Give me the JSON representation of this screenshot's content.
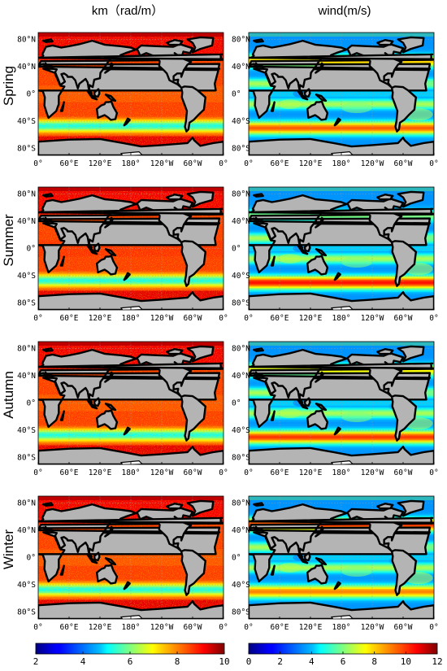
{
  "chart_data": {
    "type": "heatmap",
    "layout": "4 rows x 2 columns of global maps",
    "columns": [
      {
        "title": "km（rad/m）",
        "colorbar": {
          "range": [
            2,
            10
          ],
          "ticks": [
            "2",
            "4",
            "6",
            "8",
            "10"
          ]
        }
      },
      {
        "title": "wind(m/s)",
        "colorbar": {
          "range": [
            0,
            12
          ],
          "ticks": [
            "0",
            "2",
            "4",
            "6",
            "8",
            "10",
            "12"
          ]
        }
      }
    ],
    "rows": [
      "Spring",
      "Summer",
      "Autumn",
      "Winter"
    ],
    "x_ticks": [
      "0°",
      "60°E",
      "120°E",
      "180°",
      "120°W",
      "60°W",
      "0°"
    ],
    "y_ticks": [
      "80°N",
      "40°N",
      "0°",
      "40°S",
      "80°S"
    ],
    "x_range_deg": [
      0,
      360
    ],
    "y_range_deg": [
      -90,
      90
    ],
    "colormap": "jet",
    "grid": true,
    "legend": "colorbar-bottom"
  }
}
